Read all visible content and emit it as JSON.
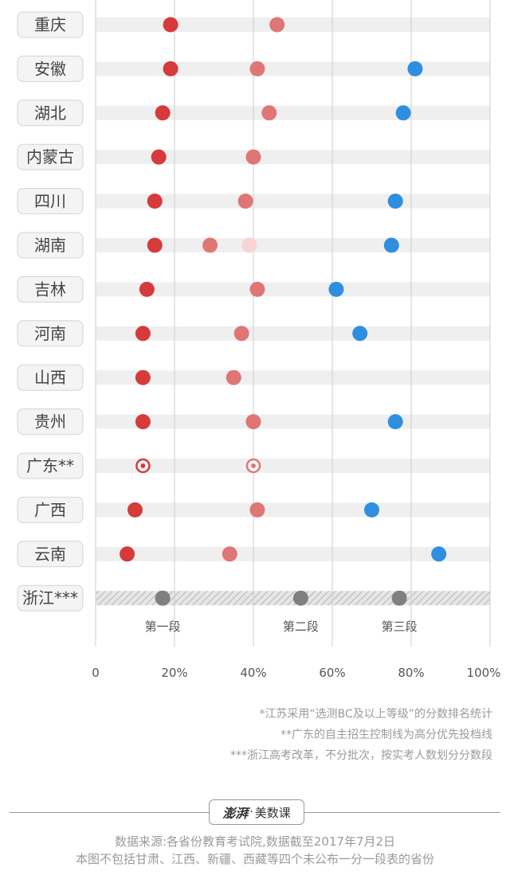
{
  "chart_data": {
    "type": "scatter",
    "provinces": [
      "重庆",
      "安徽",
      "湖北",
      "内蒙古",
      "四川",
      "湖南",
      "吉林",
      "河南",
      "山西",
      "贵州",
      "广东**",
      "广西",
      "云南",
      "浙江***"
    ],
    "series": [
      {
        "values": [
          19,
          19,
          17,
          16,
          15,
          15,
          13,
          12,
          12,
          12,
          12,
          10,
          8,
          17
        ]
      },
      {
        "values": [
          46,
          41,
          44,
          40,
          38,
          29,
          41,
          37,
          35,
          40,
          40,
          41,
          34,
          52
        ]
      },
      {
        "values": [
          null,
          null,
          null,
          null,
          null,
          39,
          null,
          null,
          null,
          null,
          null,
          null,
          null,
          null
        ]
      },
      {
        "values": [
          null,
          81,
          78,
          null,
          76,
          75,
          61,
          67,
          null,
          76,
          null,
          70,
          87,
          77
        ]
      }
    ],
    "xlim": [
      0,
      100
    ],
    "x_ticks": [
      "0",
      "20%",
      "40%",
      "60%",
      "80%",
      "100%"
    ],
    "segment_labels": [
      "第一段",
      "第二段",
      "第三段"
    ],
    "colors": {
      "first": "#d63a3a",
      "second": "#e07575",
      "second_light": "#f9d4d4",
      "third": "#2e8fe0",
      "zhejiang": "#808080",
      "stripe": "#efefef"
    },
    "hollow_rows": [
      "广东**"
    ],
    "hatched_rows": [
      "浙江***"
    ]
  },
  "notes": [
    "*江苏采用“选测BC及以上等级”的分数排名统计",
    "**广东的自主招生控制线为高分优先投档线",
    "***浙江高考改革，不分批次，按实考人数划分分数段"
  ],
  "brand": {
    "logo": "澎湃",
    "separator": "·",
    "name": "美数课"
  },
  "source": [
    "数据来源:各省份教育考试院,数据截至2017年7月2日",
    "本图不包括甘肃、江西、新疆、西藏等四个未公布一分一段表的省份"
  ]
}
